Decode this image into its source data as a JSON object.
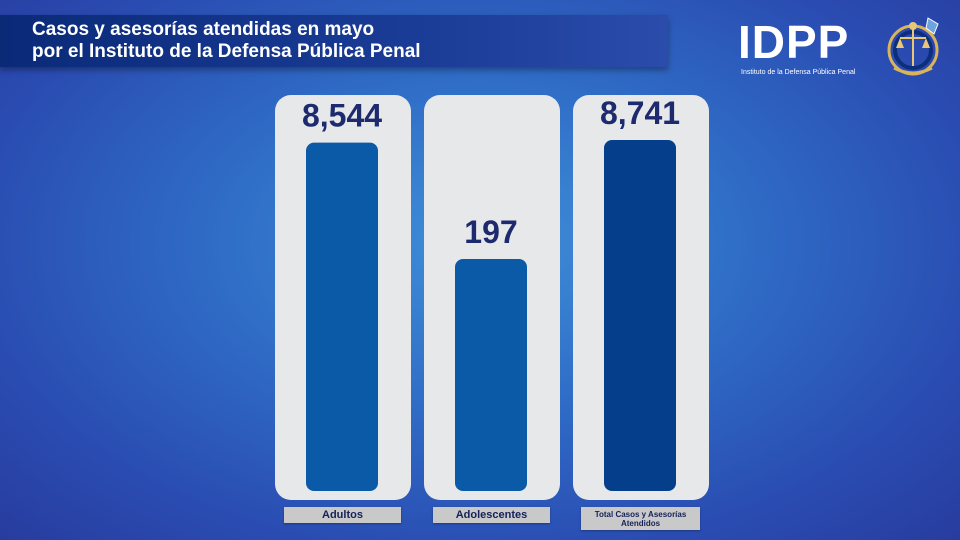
{
  "title": {
    "line1": "Casos y asesorías atendidas en mayo",
    "line2": "por el Instituto de la Defensa Pública Penal"
  },
  "logo": {
    "text": "IDPP",
    "subtitle": "Instituto de la Defensa Pública Penal",
    "seal_icon": "scales-of-justice-seal-icon"
  },
  "colors": {
    "bar_adultos": "#0b5aa8",
    "bar_adolescentes": "#0b5aa8",
    "bar_total": "#053f8c",
    "panel": "#e7e8ea",
    "value_text": "#1e2a6e"
  },
  "chart_data": {
    "type": "bar",
    "categories": [
      "Adultos",
      "Adolescentes",
      "Total Casos y Asesorías Atendidos"
    ],
    "values": [
      8544,
      197,
      8741
    ],
    "value_labels": [
      "8,544",
      "197",
      "8,741"
    ],
    "title": "Casos y asesorías atendidas en mayo por el Instituto de la Defensa Pública Penal",
    "grid": false,
    "legend": "none"
  }
}
